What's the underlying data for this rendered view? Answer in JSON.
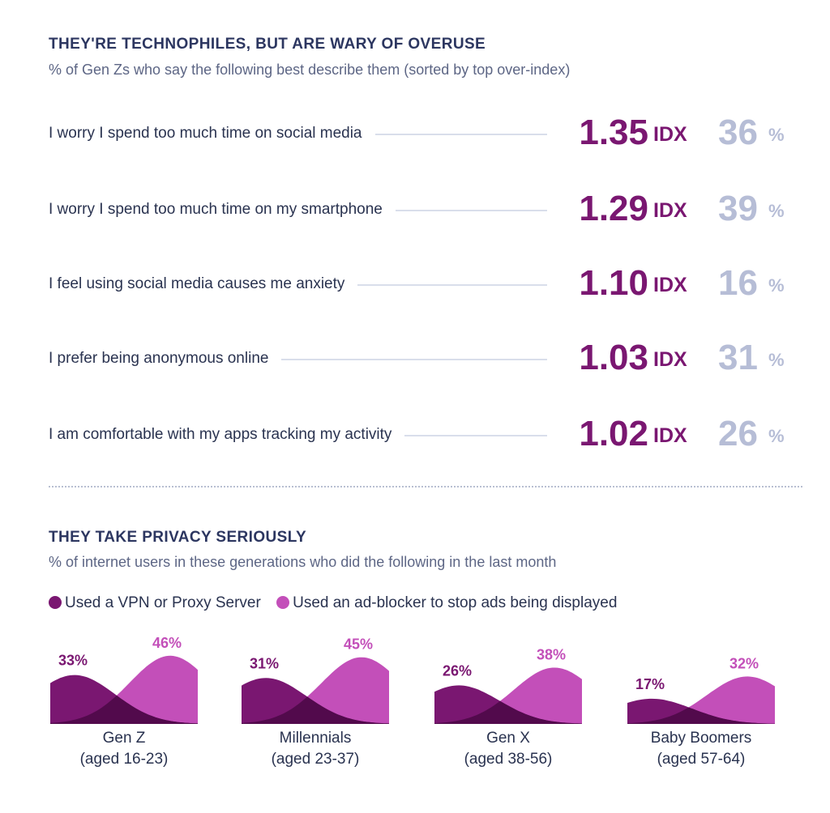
{
  "section1": {
    "title": "THEY'RE TECHNOPHILES, BUT ARE WARY OF OVERUSE",
    "subtitle": "% of Gen Zs who say the following best describe them (sorted by top over-index)",
    "idx_unit": "IDX",
    "pct_unit": "%"
  },
  "section2": {
    "title": "THEY TAKE PRIVACY SERIOUSLY",
    "subtitle": "% of internet users in these generations who did the following in the last month"
  },
  "colors": {
    "vpn": "#7a1771",
    "adblock": "#c34fb9",
    "overlap": "#520a4c",
    "pct_gray": "#b6bdd6"
  },
  "chart_data": [
    {
      "type": "table",
      "columns": [
        "statement",
        "index",
        "percent"
      ],
      "rows": [
        {
          "label": "I worry I spend too much time on social media",
          "index": "1.35",
          "percent": "36"
        },
        {
          "label": "I worry I spend too much time on my smartphone",
          "index": "1.29",
          "percent": "39"
        },
        {
          "label": "I feel using social media causes me anxiety",
          "index": "1.10",
          "percent": "16"
        },
        {
          "label": "I prefer being anonymous online",
          "index": "1.03",
          "percent": "31"
        },
        {
          "label": "I am comfortable with my apps tracking my activity",
          "index": "1.02",
          "percent": "26"
        }
      ]
    },
    {
      "type": "area",
      "legend": [
        "Used a VPN or Proxy Server",
        "Used an ad-blocker to stop ads being displayed"
      ],
      "legend_position": "top-left",
      "groups": [
        {
          "name": "Gen Z",
          "sub": "(aged 16-23)",
          "vpn": 33,
          "adblock": 46
        },
        {
          "name": "Millennials",
          "sub": "(aged 23-37)",
          "vpn": 31,
          "adblock": 45
        },
        {
          "name": "Gen X",
          "sub": "(aged 38-56)",
          "vpn": 26,
          "adblock": 38
        },
        {
          "name": "Baby Boomers",
          "sub": "(aged 57-64)",
          "vpn": 17,
          "adblock": 32
        }
      ],
      "value_suffix": "%"
    }
  ]
}
